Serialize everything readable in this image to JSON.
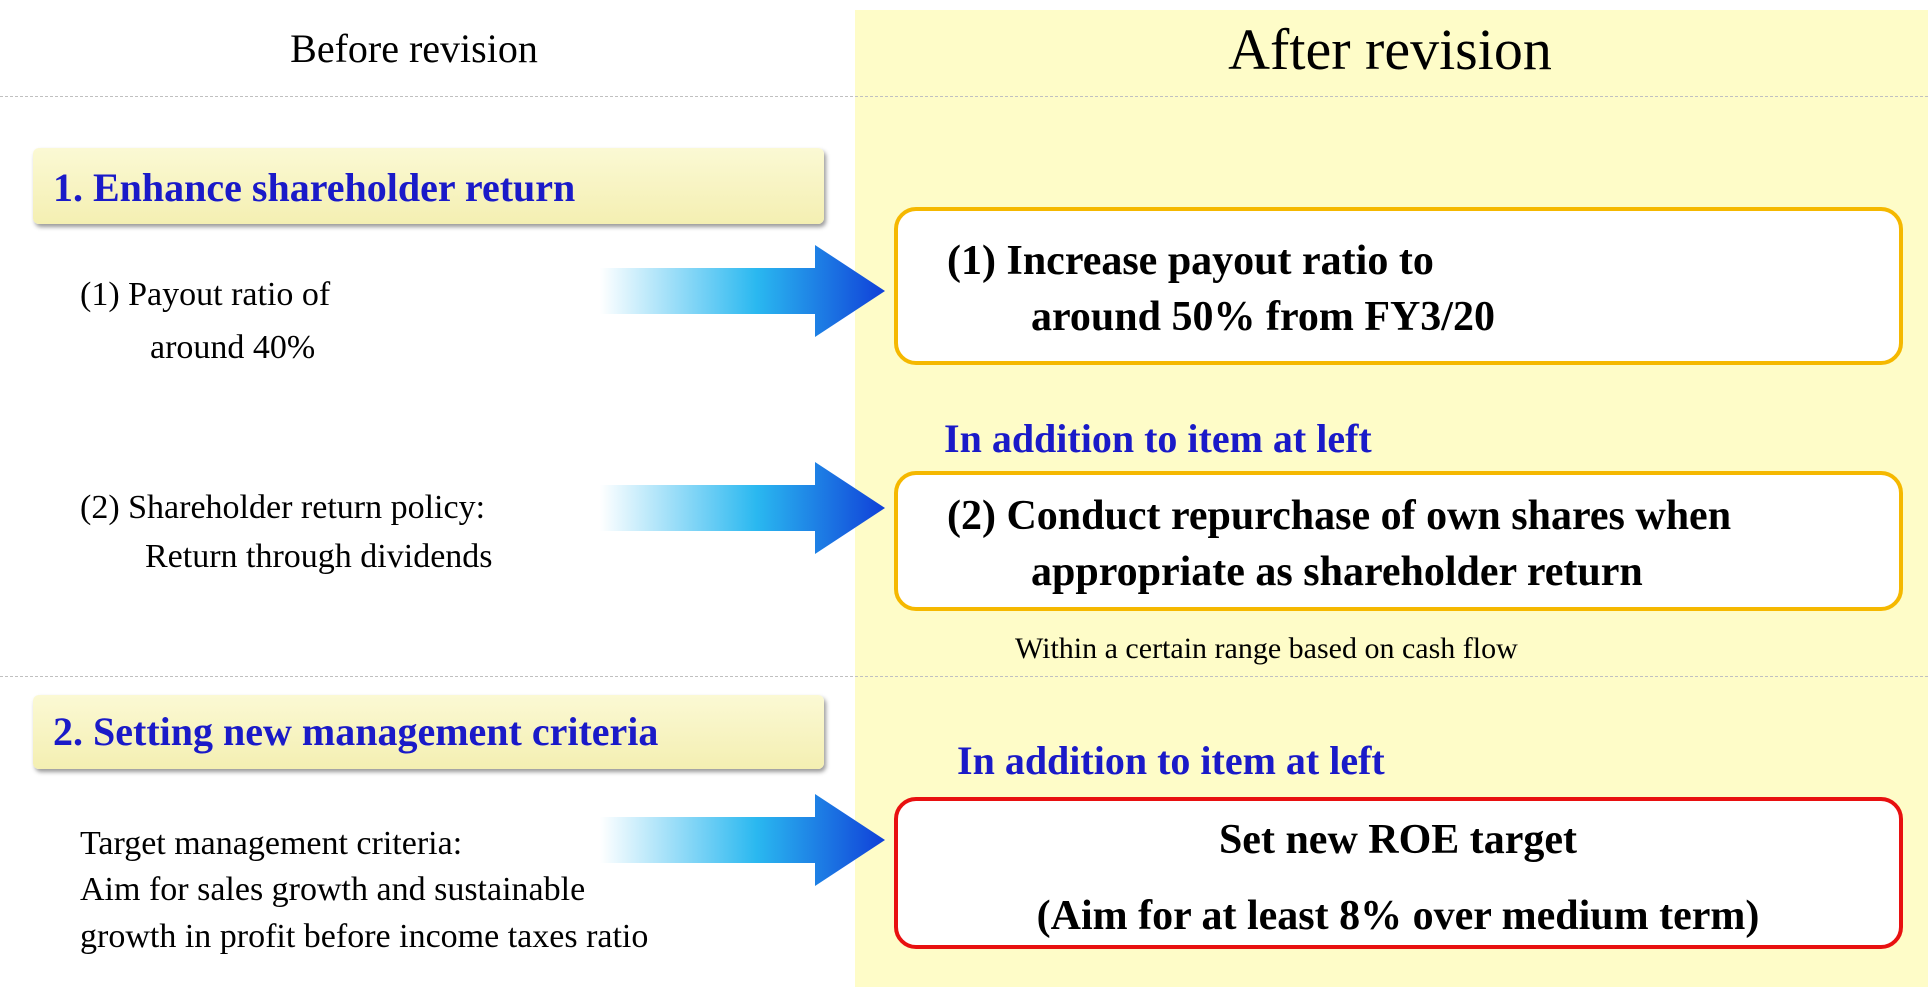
{
  "header": {
    "before": "Before revision",
    "after": "After revision"
  },
  "section1": {
    "title": "1. Enhance shareholder return",
    "before_items": [
      [
        "(1)  Payout ratio of",
        "around 40%"
      ],
      [
        "(2) Shareholder return policy:",
        "Return through dividends"
      ]
    ],
    "after_items": [
      [
        "(1) Increase payout ratio to",
        "around 50% from FY3/20"
      ],
      [
        "(2) Conduct repurchase of own shares when",
        "appropriate as shareholder return"
      ]
    ],
    "addition_note": "In addition to item at left",
    "footnote": "Within a certain range based on cash flow"
  },
  "section2": {
    "title": "2. Setting new management criteria",
    "before_lines": [
      "Target management criteria:",
      "Aim for sales growth and sustainable",
      "growth in profit before income taxes ratio"
    ],
    "addition_note": "In addition to item at left",
    "after_lines": [
      "Set new ROE target",
      "(Aim for at least 8% over medium term)"
    ]
  }
}
